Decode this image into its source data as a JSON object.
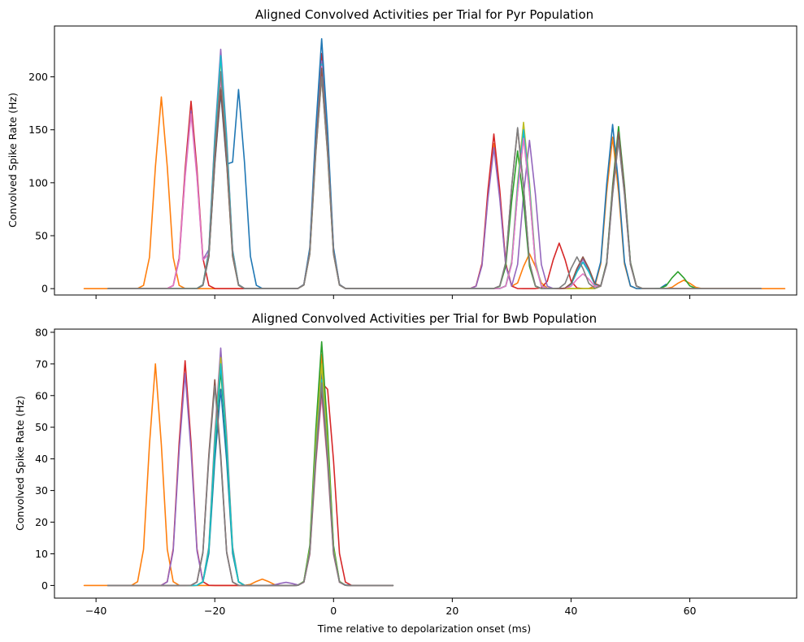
{
  "colors": [
    "#1f77b4",
    "#ff7f0e",
    "#2ca02c",
    "#d62728",
    "#9467bd",
    "#8c564b",
    "#e377c2",
    "#7f7f7f",
    "#bcbd22",
    "#17becf"
  ],
  "chart_data": [
    {
      "type": "line",
      "title": "Aligned Convolved Activities per Trial for Pyr Population",
      "xlabel": "",
      "ylabel": "Convolved Spike Rate (Hz)",
      "xlim": [
        -47,
        78
      ],
      "ylim": [
        -6,
        248
      ],
      "xticks": [
        -40,
        -20,
        0,
        20,
        40,
        60
      ],
      "xtick_labels": [
        "",
        "",
        "",
        "",
        "",
        ""
      ],
      "yticks": [
        0,
        50,
        100,
        150,
        200
      ],
      "ytick_labels": [
        "0",
        "50",
        "100",
        "150",
        "200"
      ],
      "grid": false,
      "series": [
        {
          "color": "#ff7f0e",
          "peaks": [
            [
              -29,
              181
            ],
            [
              -2,
              200
            ],
            [
              27,
              137
            ],
            [
              33,
              33
            ],
            [
              47,
              143
            ],
            [
              59,
              8
            ]
          ],
          "x": [
            -42,
            76
          ]
        },
        {
          "color": "#d62728",
          "peaks": [
            [
              -24,
              177
            ],
            [
              -2,
              222
            ],
            [
              27,
              146
            ],
            [
              38,
              43
            ],
            [
              48,
              145
            ]
          ],
          "x": [
            -38,
            72
          ]
        },
        {
          "color": "#9467bd",
          "peaks": [
            [
              -24,
              168
            ],
            [
              -19,
              226
            ],
            [
              -2,
              215
            ],
            [
              27,
              133
            ],
            [
              33,
              140
            ],
            [
              42,
              28
            ],
            [
              48,
              143
            ]
          ],
          "x": [
            -38,
            72
          ]
        },
        {
          "color": "#1f77b4",
          "peaks": [
            [
              -19,
              185
            ],
            [
              -16,
              188
            ],
            [
              -2,
              236
            ],
            [
              32,
              144
            ],
            [
              42,
              25
            ],
            [
              47,
              155
            ],
            [
              58,
              25
            ]
          ],
          "x": [
            -38,
            56
          ]
        },
        {
          "color": "#2ca02c",
          "peaks": [
            [
              -19,
              190
            ],
            [
              -2,
              210
            ],
            [
              31,
              130
            ],
            [
              48,
              153
            ],
            [
              58,
              16
            ]
          ],
          "x": [
            -38,
            72
          ]
        },
        {
          "color": "#bcbd22",
          "peaks": [
            [
              -19,
              218
            ],
            [
              -2,
              205
            ],
            [
              32,
              157
            ],
            [
              48,
              145
            ]
          ],
          "x": [
            -38,
            72
          ]
        },
        {
          "color": "#17becf",
          "peaks": [
            [
              -19,
              220
            ],
            [
              -2,
              212
            ],
            [
              32,
              150
            ],
            [
              42,
              25
            ],
            [
              48,
              148
            ]
          ],
          "x": [
            -38,
            56
          ]
        },
        {
          "color": "#e377c2",
          "peaks": [
            [
              -24,
              165
            ],
            [
              -19,
              200
            ],
            [
              -2,
              210
            ],
            [
              32,
              142
            ],
            [
              42,
              14
            ],
            [
              48,
              140
            ]
          ],
          "x": [
            -38,
            72
          ]
        },
        {
          "color": "#8c564b",
          "peaks": [
            [
              -19,
              188
            ],
            [
              -2,
              208
            ],
            [
              31,
              151
            ],
            [
              42,
              30
            ],
            [
              48,
              148
            ]
          ],
          "x": [
            -38,
            72
          ]
        },
        {
          "color": "#7f7f7f",
          "peaks": [
            [
              -19,
              205
            ],
            [
              -2,
              200
            ],
            [
              31,
              152
            ],
            [
              41,
              30
            ],
            [
              48,
              140
            ]
          ],
          "x": [
            -38,
            72
          ]
        }
      ]
    },
    {
      "type": "line",
      "title": "Aligned Convolved Activities per Trial for Bwb Population",
      "xlabel": "Time relative to depolarization onset (ms)",
      "ylabel": "Convolved Spike Rate (Hz)",
      "xlim": [
        -47,
        78
      ],
      "ylim": [
        -4,
        81
      ],
      "xticks": [
        -40,
        -20,
        0,
        20,
        40,
        60
      ],
      "xtick_labels": [
        "−40",
        "−20",
        "0",
        "20",
        "40",
        "60"
      ],
      "yticks": [
        0,
        10,
        20,
        30,
        40,
        50,
        60,
        70,
        80
      ],
      "ytick_labels": [
        "0",
        "10",
        "20",
        "30",
        "40",
        "50",
        "60",
        "70",
        "80"
      ],
      "grid": false,
      "series": [
        {
          "color": "#ff7f0e",
          "peaks": [
            [
              -30,
              70
            ],
            [
              -12,
              2
            ],
            [
              -2,
              73
            ]
          ],
          "x": [
            -42,
            10
          ]
        },
        {
          "color": "#d62728",
          "peaks": [
            [
              -25,
              71
            ],
            [
              -2,
              64
            ],
            [
              -1,
              62
            ]
          ],
          "x": [
            -38,
            10
          ]
        },
        {
          "color": "#9467bd",
          "peaks": [
            [
              -25,
              67
            ],
            [
              -19,
              75
            ],
            [
              -8,
              1
            ],
            [
              -2,
              66
            ]
          ],
          "x": [
            -38,
            10
          ]
        },
        {
          "color": "#1f77b4",
          "peaks": [
            [
              -19,
              62
            ],
            [
              -2,
              68
            ],
            [
              0,
              1
            ]
          ],
          "x": [
            -38,
            10
          ]
        },
        {
          "color": "#2ca02c",
          "peaks": [
            [
              -19,
              68
            ],
            [
              -2,
              77
            ]
          ],
          "x": [
            -38,
            10
          ]
        },
        {
          "color": "#bcbd22",
          "peaks": [
            [
              -19,
              72
            ],
            [
              -2,
              70
            ]
          ],
          "x": [
            -38,
            10
          ]
        },
        {
          "color": "#17becf",
          "peaks": [
            [
              -19,
              70
            ],
            [
              -2,
              65
            ]
          ],
          "x": [
            -38,
            10
          ]
        },
        {
          "color": "#e377c2",
          "peaks": [
            [
              -20,
              64
            ],
            [
              -2,
              60
            ]
          ],
          "x": [
            -38,
            10
          ]
        },
        {
          "color": "#8c564b",
          "peaks": [
            [
              -20,
              65
            ],
            [
              -2,
              62
            ]
          ],
          "x": [
            -38,
            10
          ]
        },
        {
          "color": "#7f7f7f",
          "peaks": [
            [
              -20,
              63
            ],
            [
              -2,
              64
            ]
          ],
          "x": [
            -38,
            10
          ]
        }
      ]
    }
  ]
}
